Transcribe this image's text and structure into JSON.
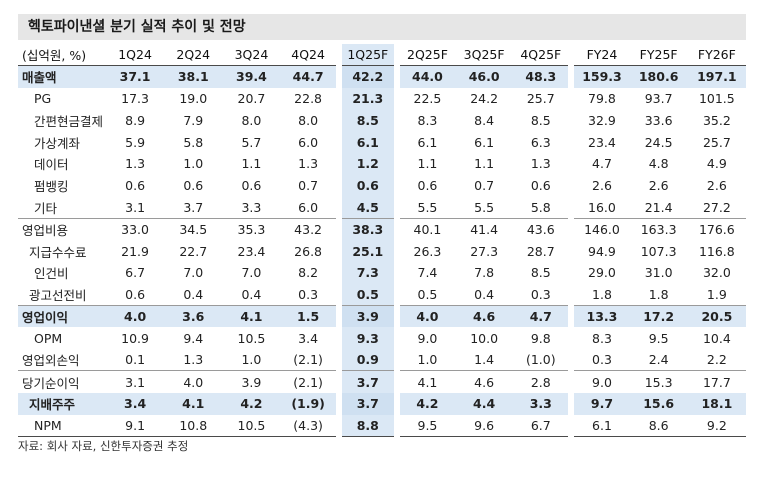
{
  "title": "헥토파이낸셜 분기 실적 추이 및 전망",
  "unit_label": "(십억원, %)",
  "columns": [
    "1Q24",
    "2Q24",
    "3Q24",
    "4Q24",
    "1Q25F",
    "2Q25F",
    "3Q25F",
    "4Q25F",
    "FY24",
    "FY25F",
    "FY26F"
  ],
  "highlight_color": "#dbe8f5",
  "rows": [
    {
      "label": "매출액",
      "values": [
        "37.1",
        "38.1",
        "39.4",
        "44.7",
        "42.2",
        "44.0",
        "46.0",
        "48.3",
        "159.3",
        "180.6",
        "197.1"
      ]
    },
    {
      "label": "PG",
      "values": [
        "17.3",
        "19.0",
        "20.7",
        "22.8",
        "21.3",
        "22.5",
        "24.2",
        "25.7",
        "79.8",
        "93.7",
        "101.5"
      ]
    },
    {
      "label": "간편현금결제",
      "values": [
        "8.9",
        "7.9",
        "8.0",
        "8.0",
        "8.5",
        "8.3",
        "8.4",
        "8.5",
        "32.9",
        "33.6",
        "35.2"
      ]
    },
    {
      "label": "가상계좌",
      "values": [
        "5.9",
        "5.8",
        "5.7",
        "6.0",
        "6.1",
        "6.1",
        "6.1",
        "6.3",
        "23.4",
        "24.5",
        "25.7"
      ]
    },
    {
      "label": "데이터",
      "values": [
        "1.3",
        "1.0",
        "1.1",
        "1.3",
        "1.2",
        "1.1",
        "1.1",
        "1.3",
        "4.7",
        "4.8",
        "4.9"
      ]
    },
    {
      "label": "펌뱅킹",
      "values": [
        "0.6",
        "0.6",
        "0.6",
        "0.7",
        "0.6",
        "0.6",
        "0.7",
        "0.6",
        "2.6",
        "2.6",
        "2.6"
      ]
    },
    {
      "label": "기타",
      "values": [
        "3.1",
        "3.7",
        "3.3",
        "6.0",
        "4.5",
        "5.5",
        "5.5",
        "5.8",
        "16.0",
        "21.4",
        "27.2"
      ]
    },
    {
      "label": "영업비용",
      "values": [
        "33.0",
        "34.5",
        "35.3",
        "43.2",
        "38.3",
        "40.1",
        "41.4",
        "43.6",
        "146.0",
        "163.3",
        "176.6"
      ]
    },
    {
      "label": "지급수수료",
      "values": [
        "21.9",
        "22.7",
        "23.4",
        "26.8",
        "25.1",
        "26.3",
        "27.3",
        "28.7",
        "94.9",
        "107.3",
        "116.8"
      ]
    },
    {
      "label": "인건비",
      "values": [
        "6.7",
        "7.0",
        "7.0",
        "8.2",
        "7.3",
        "7.4",
        "7.8",
        "8.5",
        "29.0",
        "31.0",
        "32.0"
      ]
    },
    {
      "label": "광고선전비",
      "values": [
        "0.6",
        "0.4",
        "0.4",
        "0.3",
        "0.5",
        "0.5",
        "0.4",
        "0.3",
        "1.8",
        "1.8",
        "1.9"
      ]
    },
    {
      "label": "영업이익",
      "values": [
        "4.0",
        "3.6",
        "4.1",
        "1.5",
        "3.9",
        "4.0",
        "4.6",
        "4.7",
        "13.3",
        "17.2",
        "20.5"
      ]
    },
    {
      "label": "OPM",
      "values": [
        "10.9",
        "9.4",
        "10.5",
        "3.4",
        "9.3",
        "9.0",
        "10.0",
        "9.8",
        "8.3",
        "9.5",
        "10.4"
      ]
    },
    {
      "label": "영업외손익",
      "values": [
        "0.1",
        "1.3",
        "1.0",
        "(2.1)",
        "0.9",
        "1.0",
        "1.4",
        "(1.0)",
        "0.3",
        "2.4",
        "2.2"
      ]
    },
    {
      "label": "당기순이익",
      "values": [
        "3.1",
        "4.0",
        "3.9",
        "(2.1)",
        "3.7",
        "4.1",
        "4.6",
        "2.8",
        "9.0",
        "15.3",
        "17.7"
      ]
    },
    {
      "label": "지배주주",
      "values": [
        "3.4",
        "4.1",
        "4.2",
        "(1.9)",
        "3.7",
        "4.2",
        "4.4",
        "3.3",
        "9.7",
        "15.6",
        "18.1"
      ]
    },
    {
      "label": "NPM",
      "values": [
        "9.1",
        "10.8",
        "10.5",
        "(4.3)",
        "8.8",
        "9.5",
        "9.6",
        "6.7",
        "6.1",
        "8.6",
        "9.2"
      ]
    }
  ],
  "source": "자료: 회사 자료, 신한투자증권 추정"
}
